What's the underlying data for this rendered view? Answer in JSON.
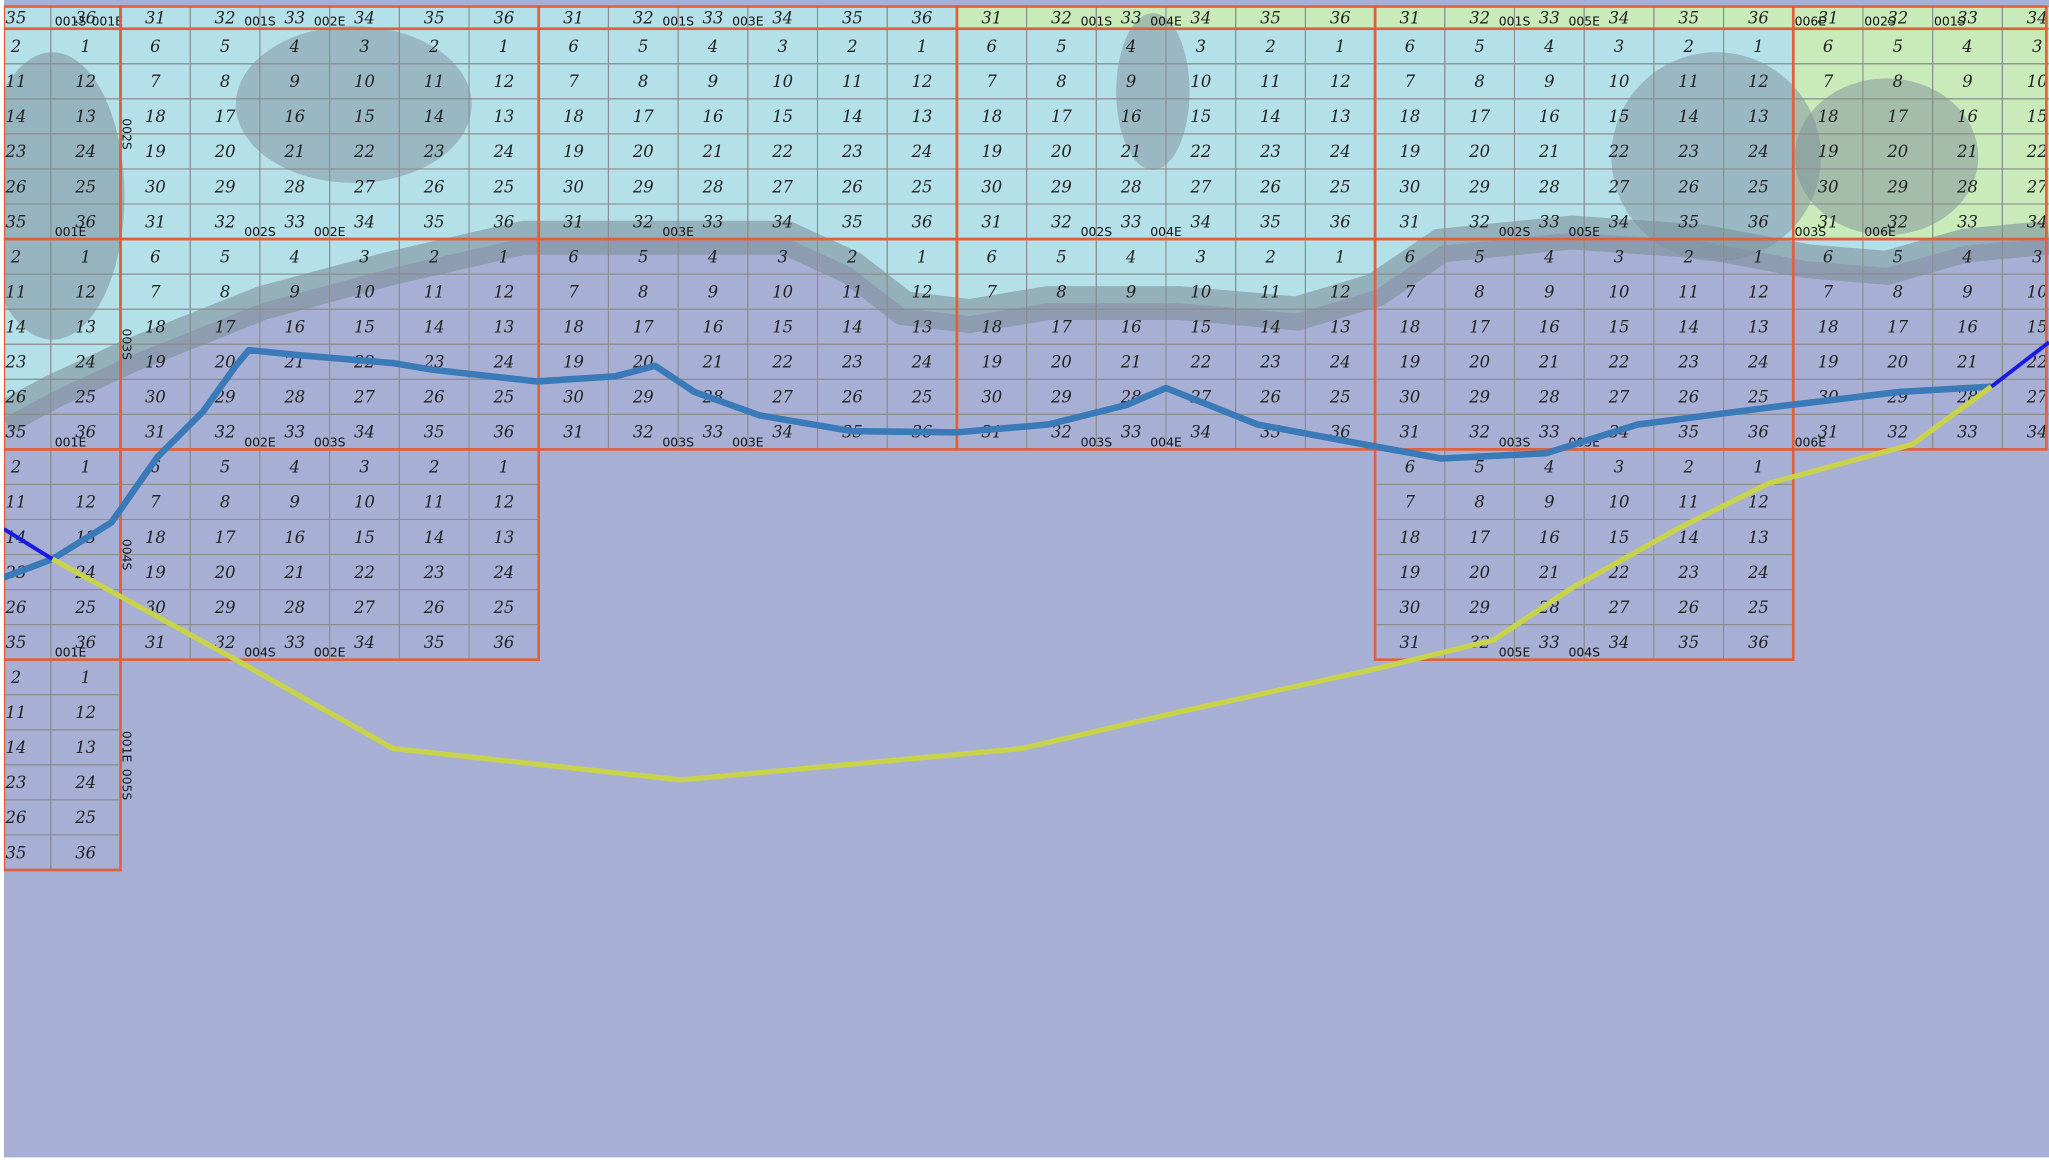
{
  "grid": {
    "strip": [
      {
        "sections": [
          [
            35,
            36
          ]
        ],
        "labels": [
          "001S",
          "001E"
        ]
      },
      {
        "sections": [
          [
            31,
            32,
            33,
            34,
            35,
            36
          ]
        ],
        "labels": [
          "001S",
          "002E"
        ]
      },
      {
        "sections": [
          [
            31,
            32,
            33,
            34,
            35,
            36
          ]
        ],
        "labels": [
          "001S",
          "003E"
        ]
      },
      {
        "sections": [
          [
            31,
            32,
            33,
            34,
            35,
            36
          ]
        ],
        "labels": [
          "001S",
          "004E"
        ]
      },
      {
        "sections": [
          [
            31,
            32,
            33,
            34,
            35,
            36
          ]
        ],
        "labels": [
          "001S",
          "005E"
        ]
      },
      {
        "sections": [
          [
            31,
            32,
            33,
            34
          ]
        ],
        "labels": [
          "006E",
          "002S",
          "001S"
        ]
      }
    ],
    "rows": [
      [
        {
          "sections": [
            [
              2,
              1
            ],
            [
              11,
              12
            ],
            [
              14,
              13
            ],
            [
              23,
              24
            ],
            [
              26,
              25
            ],
            [
              35,
              36
            ]
          ],
          "labels": [
            "001E"
          ]
        },
        {
          "sections": [
            [
              6,
              5,
              4,
              3,
              2,
              1
            ],
            [
              7,
              8,
              9,
              10,
              11,
              12
            ],
            [
              18,
              17,
              16,
              15,
              14,
              13
            ],
            [
              19,
              20,
              21,
              22,
              23,
              24
            ],
            [
              30,
              29,
              28,
              27,
              26,
              25
            ],
            [
              31,
              32,
              33,
              34,
              35,
              36
            ]
          ],
          "labels": [
            "002S",
            "002E"
          ],
          "side_labels": [
            "002S"
          ]
        },
        {
          "sections": [
            [
              6,
              5,
              4,
              3,
              2,
              1
            ],
            [
              7,
              8,
              9,
              10,
              11,
              12
            ],
            [
              18,
              17,
              16,
              15,
              14,
              13
            ],
            [
              19,
              20,
              21,
              22,
              23,
              24
            ],
            [
              30,
              29,
              28,
              27,
              26,
              25
            ],
            [
              31,
              32,
              33,
              34,
              35,
              36
            ]
          ],
          "labels": [
            "003E"
          ]
        },
        {
          "sections": [
            [
              6,
              5,
              4,
              3,
              2,
              1
            ],
            [
              7,
              8,
              9,
              10,
              11,
              12
            ],
            [
              18,
              17,
              16,
              15,
              14,
              13
            ],
            [
              19,
              20,
              21,
              22,
              23,
              24
            ],
            [
              30,
              29,
              28,
              27,
              26,
              25
            ],
            [
              31,
              32,
              33,
              34,
              35,
              36
            ]
          ],
          "labels": [
            "002S",
            "004E"
          ]
        },
        {
          "sections": [
            [
              6,
              5,
              4,
              3,
              2,
              1
            ],
            [
              7,
              8,
              9,
              10,
              11,
              12
            ],
            [
              18,
              17,
              16,
              15,
              14,
              13
            ],
            [
              19,
              20,
              21,
              22,
              23,
              24
            ],
            [
              30,
              29,
              28,
              27,
              26,
              25
            ],
            [
              31,
              32,
              33,
              34,
              35,
              36
            ]
          ],
          "labels": [
            "002S",
            "005E"
          ]
        },
        {
          "sections": [
            [
              6,
              5,
              4,
              3
            ],
            [
              7,
              8,
              9,
              10
            ],
            [
              18,
              17,
              16,
              15
            ],
            [
              19,
              20,
              21,
              22
            ],
            [
              30,
              29,
              28,
              27
            ],
            [
              31,
              32,
              33,
              34
            ]
          ],
          "labels": [
            "003S",
            "006E"
          ]
        }
      ],
      [
        {
          "sections": [
            [
              2,
              1
            ],
            [
              11,
              12
            ],
            [
              14,
              13
            ],
            [
              23,
              24
            ],
            [
              26,
              25
            ],
            [
              35,
              36
            ]
          ],
          "labels": [
            "001E"
          ]
        },
        {
          "sections": [
            [
              6,
              5,
              4,
              3,
              2,
              1
            ],
            [
              7,
              8,
              9,
              10,
              11,
              12
            ],
            [
              18,
              17,
              16,
              15,
              14,
              13
            ],
            [
              19,
              20,
              21,
              22,
              23,
              24
            ],
            [
              30,
              29,
              28,
              27,
              26,
              25
            ],
            [
              31,
              32,
              33,
              34,
              35,
              36
            ]
          ],
          "labels": [
            "002E",
            "003S"
          ],
          "side_labels": [
            "003S"
          ]
        },
        {
          "sections": [
            [
              6,
              5,
              4,
              3,
              2,
              1
            ],
            [
              7,
              8,
              9,
              10,
              11,
              12
            ],
            [
              18,
              17,
              16,
              15,
              14,
              13
            ],
            [
              19,
              20,
              21,
              22,
              23,
              24
            ],
            [
              30,
              29,
              28,
              27,
              26,
              25
            ],
            [
              31,
              32,
              33,
              34,
              35,
              36
            ]
          ],
          "labels": [
            "003S",
            "003E"
          ]
        },
        {
          "sections": [
            [
              6,
              5,
              4,
              3,
              2,
              1
            ],
            [
              7,
              8,
              9,
              10,
              11,
              12
            ],
            [
              18,
              17,
              16,
              15,
              14,
              13
            ],
            [
              19,
              20,
              21,
              22,
              23,
              24
            ],
            [
              30,
              29,
              28,
              27,
              26,
              25
            ],
            [
              31,
              32,
              33,
              34,
              35,
              36
            ]
          ],
          "labels": [
            "003S",
            "004E"
          ]
        },
        {
          "sections": [
            [
              6,
              5,
              4,
              3,
              2,
              1
            ],
            [
              7,
              8,
              9,
              10,
              11,
              12
            ],
            [
              18,
              17,
              16,
              15,
              14,
              13
            ],
            [
              19,
              20,
              21,
              22,
              23,
              24
            ],
            [
              30,
              29,
              28,
              27,
              26,
              25
            ],
            [
              31,
              32,
              33,
              34,
              35,
              36
            ]
          ],
          "labels": [
            "003S",
            "005E"
          ]
        },
        {
          "sections": [
            [
              6,
              5,
              4,
              3
            ],
            [
              7,
              8,
              9,
              10
            ],
            [
              18,
              17,
              16,
              15
            ],
            [
              19,
              20,
              21,
              22
            ],
            [
              30,
              29,
              28,
              27
            ],
            [
              31,
              32,
              33,
              34
            ]
          ],
          "labels": [
            "006E"
          ]
        }
      ],
      [
        {
          "sections": [
            [
              2,
              1
            ],
            [
              11,
              12
            ],
            [
              14,
              13
            ],
            [
              23,
              24
            ],
            [
              26,
              25
            ],
            [
              35,
              36
            ]
          ],
          "labels": [
            "001E"
          ]
        },
        {
          "sections": [
            [
              6,
              5,
              4,
              3,
              2,
              1
            ],
            [
              7,
              8,
              9,
              10,
              11,
              12
            ],
            [
              18,
              17,
              16,
              15,
              14,
              13
            ],
            [
              19,
              20,
              21,
              22,
              23,
              24
            ],
            [
              30,
              29,
              28,
              27,
              26,
              25
            ],
            [
              31,
              32,
              33,
              34,
              35,
              36
            ]
          ],
          "labels": [
            "004S",
            "002E"
          ],
          "side_labels": [
            "004S"
          ]
        },
        null,
        null,
        {
          "sections": [
            [
              6,
              5,
              4,
              3,
              2,
              1
            ],
            [
              7,
              8,
              9,
              10,
              11,
              12
            ],
            [
              18,
              17,
              16,
              15,
              14,
              13
            ],
            [
              19,
              20,
              21,
              22,
              23,
              24
            ],
            [
              30,
              29,
              28,
              27,
              26,
              25
            ],
            [
              31,
              32,
              33,
              34,
              35,
              36
            ]
          ],
          "labels": [
            "005E",
            "004S"
          ]
        },
        null
      ],
      [
        {
          "sections": [
            [
              2,
              1
            ],
            [
              11,
              12
            ],
            [
              14,
              13
            ],
            [
              23,
              24
            ],
            [
              26,
              25
            ],
            [
              35,
              36
            ]
          ],
          "side_labels": [
            "001E",
            "005S"
          ]
        },
        null,
        null,
        null,
        null,
        null
      ]
    ]
  }
}
